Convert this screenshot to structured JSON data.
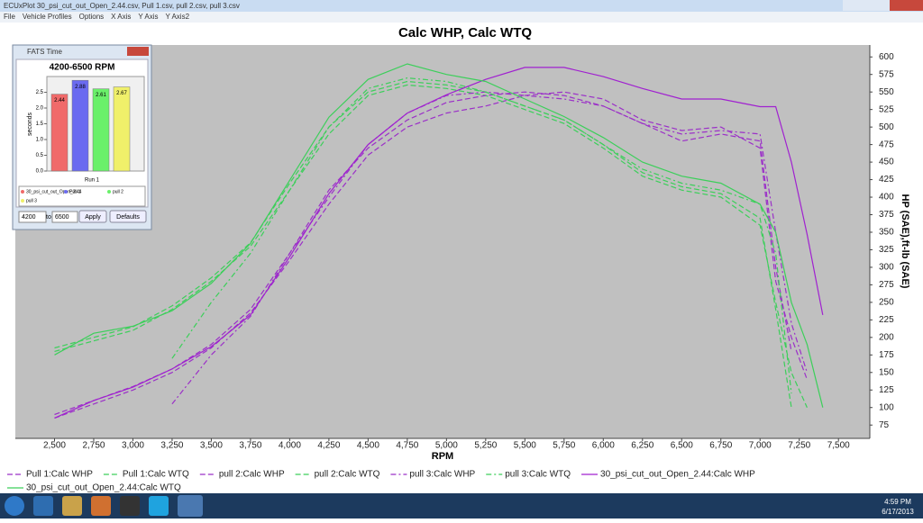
{
  "window": {
    "title": "ECUxPlot 30_psi_cut_out_Open_2.44.csv, Pull 1.csv, pull 2.csv, pull 3.csv",
    "menu": [
      "File",
      "Vehicle Profiles",
      "Options",
      "X Axis",
      "Y Axis",
      "Y Axis2"
    ]
  },
  "fats_window": {
    "title": "FATS Time",
    "from": "4200",
    "to_label": "to",
    "to": "6500",
    "apply": "Apply",
    "defaults": "Defaults"
  },
  "taskbar": {
    "time": "4:59 PM",
    "date": "6/17/2013"
  },
  "chart_data": [
    {
      "type": "line",
      "title": "Calc WHP, Calc WTQ",
      "x_label": "RPM",
      "y2_label": "HP (SAE),ft-lb (SAE)",
      "xlim": [
        2250,
        7700
      ],
      "ylim": [
        56,
        617
      ],
      "grid": false,
      "xticks": [
        {
          "value": 2500,
          "label": "2,500"
        },
        {
          "value": 2750,
          "label": "2,750"
        },
        {
          "value": 3000,
          "label": "3,000"
        },
        {
          "value": 3250,
          "label": "3,250"
        },
        {
          "value": 3500,
          "label": "3,500"
        },
        {
          "value": 3750,
          "label": "3,750"
        },
        {
          "value": 4000,
          "label": "4,000"
        },
        {
          "value": 4250,
          "label": "4,250"
        },
        {
          "value": 4500,
          "label": "4,500"
        },
        {
          "value": 4750,
          "label": "4,750"
        },
        {
          "value": 5000,
          "label": "5,000"
        },
        {
          "value": 5250,
          "label": "5,250"
        },
        {
          "value": 5500,
          "label": "5,500"
        },
        {
          "value": 5750,
          "label": "5,750"
        },
        {
          "value": 6000,
          "label": "6,000"
        },
        {
          "value": 6250,
          "label": "6,250"
        },
        {
          "value": 6500,
          "label": "6,500"
        },
        {
          "value": 6750,
          "label": "6,750"
        },
        {
          "value": 7000,
          "label": "7,000"
        },
        {
          "value": 7250,
          "label": "7,250"
        },
        {
          "value": 7500,
          "label": "7,500"
        }
      ],
      "yticks": [
        75,
        100,
        125,
        150,
        175,
        200,
        225,
        250,
        275,
        300,
        325,
        350,
        375,
        400,
        425,
        450,
        475,
        500,
        525,
        550,
        575,
        600
      ],
      "x": [
        2500,
        2750,
        3000,
        3250,
        3500,
        3750,
        4000,
        4250,
        4500,
        4750,
        5000,
        5250,
        5500,
        5750,
        6000,
        6250,
        6500,
        6750,
        7000,
        7100,
        7200,
        7300,
        7400
      ],
      "series": [
        {
          "name": "Pull 1:Calc WHP",
          "color": "#9b30c8",
          "line_style": "dashed",
          "values": [
            85,
            105,
            125,
            150,
            185,
            235,
            310,
            390,
            460,
            500,
            520,
            530,
            545,
            550,
            540,
            510,
            495,
            500,
            470,
            280,
            200,
            140,
            null
          ]
        },
        {
          "name": "Pull 1:Calc WTQ",
          "color": "#3ccf5a",
          "line_style": "dashed",
          "values": [
            180,
            195,
            210,
            240,
            280,
            330,
            410,
            490,
            545,
            560,
            555,
            545,
            525,
            505,
            470,
            430,
            410,
            400,
            360,
            250,
            150,
            100,
            null
          ]
        },
        {
          "name": "pull 2:Calc WHP",
          "color": "#9b30c8",
          "line_style": "dashed",
          "values": [
            90,
            110,
            130,
            155,
            190,
            240,
            320,
            410,
            470,
            510,
            535,
            545,
            550,
            545,
            530,
            505,
            480,
            490,
            480,
            300,
            180,
            null,
            null
          ]
        },
        {
          "name": "pull 2:Calc WTQ",
          "color": "#3ccf5a",
          "line_style": "dashed",
          "values": [
            185,
            200,
            215,
            245,
            285,
            335,
            420,
            500,
            550,
            565,
            560,
            550,
            530,
            510,
            475,
            435,
            415,
            405,
            370,
            240,
            100,
            null,
            null
          ]
        },
        {
          "name": "pull 3:Calc WHP",
          "color": "#9b30c8",
          "line_style": "dashdot",
          "values": [
            null,
            null,
            null,
            105,
            175,
            230,
            320,
            400,
            475,
            520,
            545,
            550,
            545,
            540,
            530,
            505,
            490,
            495,
            490,
            350,
            220,
            150,
            null
          ]
        },
        {
          "name": "pull 3:Calc WTQ",
          "color": "#3ccf5a",
          "line_style": "dashdot",
          "values": [
            null,
            null,
            null,
            170,
            250,
            320,
            410,
            500,
            555,
            570,
            565,
            550,
            530,
            510,
            475,
            440,
            420,
            410,
            390,
            320,
            120,
            null,
            null
          ]
        },
        {
          "name": "30_psi_cut_out_Open_2.44:Calc WHP",
          "color": "#a020d0",
          "line_style": "solid",
          "values": [
            85,
            110,
            129,
            155,
            187,
            232,
            315,
            405,
            475,
            520,
            546,
            568,
            585,
            585,
            572,
            555,
            540,
            540,
            529,
            529,
            450,
            347,
            232
          ]
        },
        {
          "name": "30_psi_cut_out_Open_2.44:Calc WTQ",
          "color": "#3ccf5a",
          "line_style": "solid",
          "values": [
            175,
            206,
            216,
            238,
            277,
            334,
            424,
            514,
            568,
            590,
            575,
            565,
            540,
            515,
            485,
            450,
            430,
            420,
            390,
            350,
            250,
            190,
            100
          ]
        }
      ]
    },
    {
      "type": "bar",
      "title": "4200-6500 RPM",
      "y_label": "seconds",
      "x_label": "Run 1",
      "ylim": [
        0,
        3
      ],
      "yticks": [
        {
          "value": 0,
          "label": "0.0"
        },
        0.5,
        {
          "value": 1,
          "label": "1.0"
        },
        1.5,
        {
          "value": 2,
          "label": "2.0"
        },
        2.5
      ],
      "series": [
        {
          "name": "30_psi_cut_out_Open_2.44",
          "color": "#f06a6a",
          "values": [
            2.44
          ]
        },
        {
          "name": "Pull 1",
          "color": "#6a6af0",
          "values": [
            2.88
          ]
        },
        {
          "name": "pull 2",
          "color": "#6af06a",
          "values": [
            2.61
          ]
        },
        {
          "name": "pull 3",
          "color": "#f0f06a",
          "values": [
            2.67
          ]
        }
      ]
    }
  ]
}
